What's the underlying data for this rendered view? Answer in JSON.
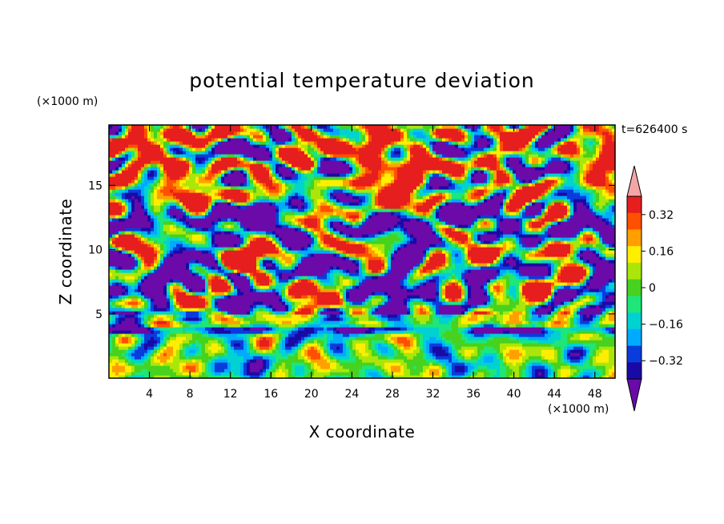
{
  "chart_data": {
    "type": "heatmap",
    "title": "potential temperature deviation",
    "xlabel": "X coordinate",
    "ylabel": "Z coordinate",
    "x_unit": "(×1000 m)",
    "y_unit": "(×1000 m)",
    "time_label": "t=626400 s",
    "xlim": [
      0,
      50
    ],
    "ylim": [
      0,
      19.7
    ],
    "x_ticks": [
      4,
      8,
      12,
      16,
      20,
      24,
      28,
      32,
      36,
      40,
      44,
      48
    ],
    "y_ticks": [
      5,
      10,
      15
    ],
    "colorbar": {
      "levels": [
        -0.4,
        -0.32,
        -0.24,
        -0.16,
        -0.08,
        0,
        0.08,
        0.16,
        0.24,
        0.32,
        0.4
      ],
      "labeled_ticks": [
        {
          "value": 0.32,
          "label": "0.32"
        },
        {
          "value": 0.16,
          "label": "0.16"
        },
        {
          "value": 0,
          "label": "0"
        },
        {
          "value": -0.16,
          "label": "−0.16"
        },
        {
          "value": -0.32,
          "label": "−0.32"
        }
      ],
      "colors": [
        "#6b0aa8",
        "#1a0aa5",
        "#0a3cdc",
        "#00aaff",
        "#00d2d2",
        "#1ee678",
        "#46d21e",
        "#aae60a",
        "#ffee00",
        "#ffa000",
        "#ff5000",
        "#e61e1e",
        "#f4a6a6"
      ],
      "extend": "both"
    }
  }
}
